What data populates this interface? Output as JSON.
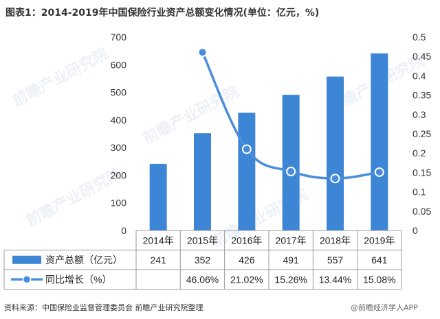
{
  "title": "图表1：2014-2019年中国保险行业资产总额变化情况(单位：亿元，%)",
  "colors": {
    "bar": "#3d86d6",
    "line": "#4a8ddc",
    "axis": "#555555",
    "grid": "#999999"
  },
  "watermark": "前瞻产业研究院",
  "chart_data": {
    "type": "bar",
    "categories": [
      "2014年",
      "2015年",
      "2016年",
      "2017年",
      "2018年",
      "2019年"
    ],
    "series": [
      {
        "name": "资产总额（亿元）",
        "type": "bar",
        "axis": "left",
        "values": [
          241,
          352,
          426,
          491,
          557,
          641
        ]
      },
      {
        "name": "同比增长（%）",
        "type": "line",
        "axis": "right",
        "values": [
          null,
          0.4606,
          0.2102,
          0.1526,
          0.1344,
          0.1508
        ]
      }
    ],
    "ylim": [
      0,
      700
    ],
    "y_ticks": [
      "0",
      "100",
      "200",
      "300",
      "400",
      "500",
      "600",
      "700"
    ],
    "y2lim": [
      0,
      0.5
    ],
    "y2_ticks": [
      "0",
      "0.05",
      "0.1",
      "0.15",
      "0.2",
      "0.25",
      "0.3",
      "0.35",
      "0.4",
      "0.45",
      "0.5"
    ],
    "table": {
      "rows": [
        {
          "label": "资产总额（亿元）",
          "cells": [
            "241",
            "352",
            "426",
            "491",
            "557",
            "641"
          ]
        },
        {
          "label": "同比增长（%）",
          "cells": [
            "",
            "46.06%",
            "21.02%",
            "15.26%",
            "13.44%",
            "15.08%"
          ]
        }
      ]
    }
  },
  "footer": {
    "source": "资料来源：中国保险业监督管理委员会 前瞻产业研究院整理",
    "badge": "@前瞻经济学人APP"
  }
}
